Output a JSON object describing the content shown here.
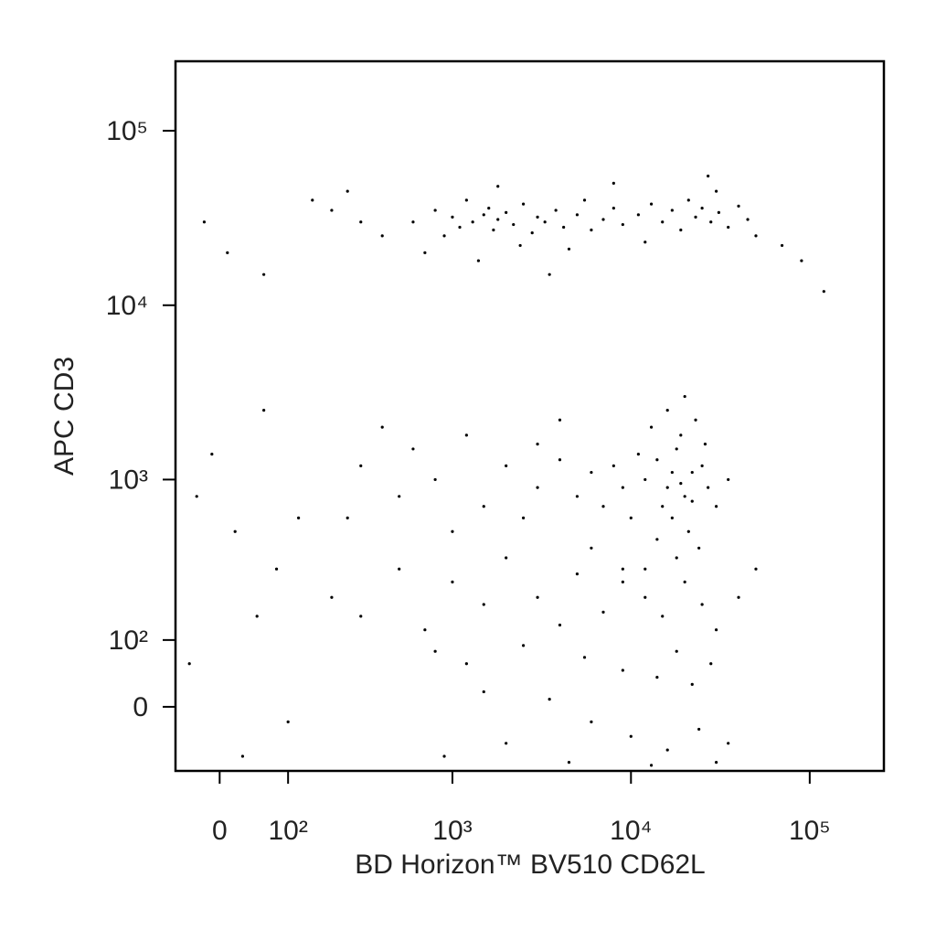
{
  "chart_data": {
    "type": "scatter",
    "x_label": "BD Horizon™ BV510 CD62L",
    "y_label": "APC CD3",
    "xscale": "biexponential",
    "yscale": "biexponential",
    "color": "#000000",
    "xlim": [
      -60,
      260000
    ],
    "ylim": [
      -95,
      250000
    ],
    "xticks": [
      0,
      {
        "value": 100,
        "label": "10²"
      },
      {
        "value": 1000,
        "label": "10³"
      },
      {
        "value": 10000,
        "label": "10⁴"
      },
      {
        "value": 100000,
        "label": "10⁵"
      }
    ],
    "yticks": [
      0,
      {
        "value": 100,
        "label": "10²"
      },
      {
        "value": 1000,
        "label": "10³"
      },
      {
        "value": 10000,
        "label": "10⁴"
      },
      {
        "value": 100000,
        "label": "10⁵"
      }
    ],
    "x": [
      600,
      800,
      900,
      1000,
      1100,
      1200,
      1300,
      1500,
      1600,
      1700,
      1800,
      2000,
      2200,
      2500,
      2800,
      3000,
      3300,
      3800,
      4200,
      5000,
      5500,
      6000,
      7000,
      8000,
      9000,
      11000,
      13000,
      15000,
      17000,
      19000,
      21000,
      23000,
      25000,
      28000,
      31000,
      35000,
      40000,
      45000,
      50000,
      700,
      1400,
      2400,
      4500,
      12000,
      30000,
      400,
      300,
      200,
      150,
      -20,
      10,
      60,
      250,
      1800,
      8000,
      27000,
      70000,
      90000,
      120000,
      3500,
      12000,
      14000,
      16000,
      18000,
      20000,
      22000,
      15000,
      17000,
      19000,
      21000,
      25000,
      13000,
      11000,
      9000,
      8000,
      10000,
      24000,
      18000,
      16000,
      20000,
      23000,
      27000,
      30000,
      35000,
      14000,
      12000,
      26000,
      17000,
      19000,
      22000,
      7000,
      6000,
      5000,
      4000,
      3000,
      2500,
      2000,
      1500,
      1200,
      1000,
      800,
      600,
      500,
      400,
      300,
      250,
      6000,
      9000,
      4000,
      3000,
      200,
      300,
      500,
      700,
      1000,
      1500,
      2000,
      3000,
      4000,
      5000,
      7000,
      9000,
      12000,
      15000,
      20000,
      25000,
      30000,
      40000,
      50000,
      800,
      1200,
      2500,
      5500,
      9000,
      14000,
      18000,
      22000,
      28000,
      1500,
      3500,
      6000,
      10000,
      16000,
      24000,
      35000,
      900,
      2000,
      4500,
      13000,
      30000,
      -10,
      20,
      -30,
      80,
      100,
      50,
      120,
      -40,
      30,
      60
    ],
    "values": [
      30000,
      35000,
      25000,
      32000,
      28000,
      40000,
      30000,
      33000,
      36000,
      27000,
      31000,
      34000,
      29000,
      38000,
      26000,
      32000,
      30000,
      35000,
      28000,
      33000,
      40000,
      27000,
      31000,
      36000,
      29000,
      33000,
      38000,
      30000,
      35000,
      27000,
      40000,
      32000,
      36000,
      30000,
      34000,
      28000,
      37000,
      31000,
      25000,
      20000,
      18000,
      22000,
      21000,
      23000,
      45000,
      25000,
      30000,
      35000,
      40000,
      30000,
      20000,
      15000,
      45000,
      48000,
      50000,
      55000,
      22000,
      18000,
      12000,
      15000,
      1000,
      1300,
      900,
      1500,
      800,
      1100,
      700,
      600,
      1800,
      500,
      1200,
      2000,
      1400,
      900,
      1200,
      600,
      400,
      350,
      2500,
      3000,
      2200,
      900,
      700,
      1000,
      450,
      300,
      1600,
      1100,
      950,
      750,
      700,
      1100,
      800,
      1300,
      900,
      600,
      1200,
      700,
      1800,
      500,
      1000,
      1500,
      800,
      2000,
      1200,
      600,
      400,
      250,
      2200,
      1600,
      200,
      150,
      300,
      120,
      250,
      180,
      350,
      200,
      130,
      280,
      160,
      300,
      200,
      150,
      250,
      180,
      120,
      200,
      300,
      80,
      60,
      90,
      70,
      50,
      40,
      80,
      30,
      60,
      20,
      10,
      -20,
      -40,
      -60,
      -30,
      -50,
      -70,
      -50,
      -80,
      -85,
      -80,
      1400,
      500,
      800,
      300,
      -20,
      150,
      600,
      60,
      -70,
      2500
    ]
  }
}
